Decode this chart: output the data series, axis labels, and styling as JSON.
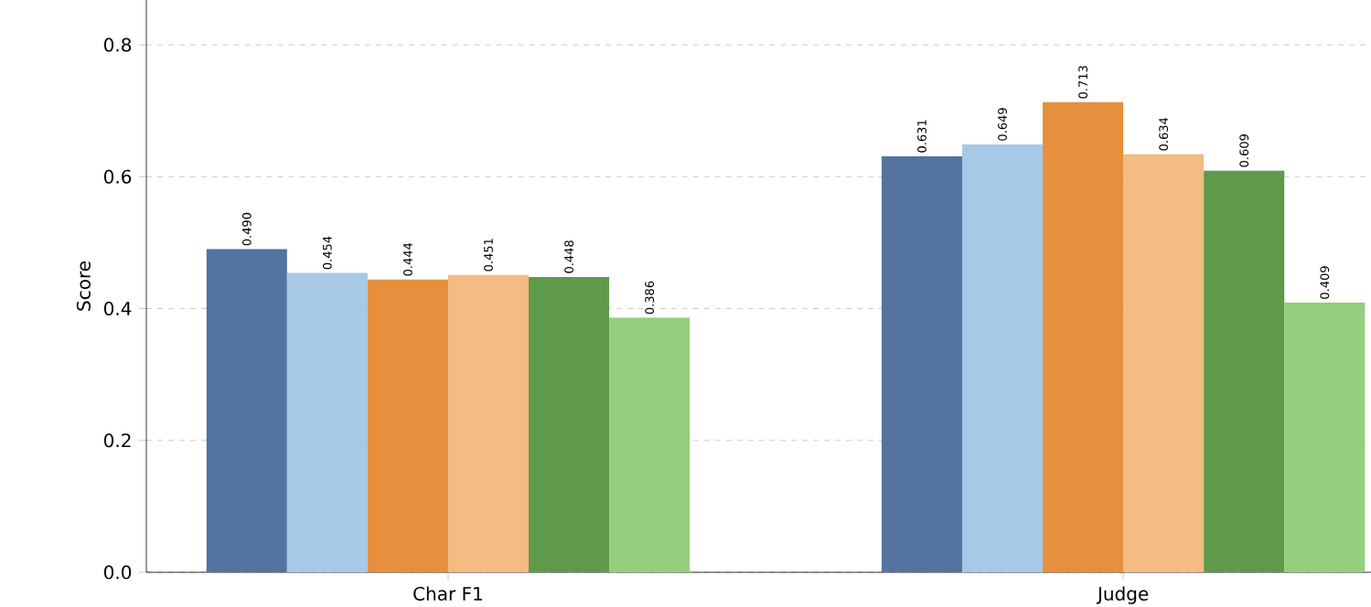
{
  "chart_data": {
    "type": "bar",
    "ylabel": "Score",
    "categories": [
      "Char F1",
      "Judge"
    ],
    "series": [
      {
        "color": "#54739f",
        "values": [
          0.49,
          0.631
        ],
        "value_labels": [
          "0.490",
          "0.631"
        ]
      },
      {
        "color": "#a7c9e6",
        "values": [
          0.454,
          0.649
        ],
        "value_labels": [
          "0.454",
          "0.649"
        ]
      },
      {
        "color": "#e68f3c",
        "values": [
          0.444,
          0.713
        ],
        "value_labels": [
          "0.444",
          "0.713"
        ]
      },
      {
        "color": "#f4bb82",
        "values": [
          0.451,
          0.634
        ],
        "value_labels": [
          "0.451",
          "0.634"
        ]
      },
      {
        "color": "#5f9a4b",
        "values": [
          0.448,
          0.609
        ],
        "value_labels": [
          "0.448",
          "0.609"
        ]
      },
      {
        "color": "#94cf7e",
        "values": [
          0.386,
          0.409
        ],
        "value_labels": [
          "0.386",
          "0.409"
        ]
      }
    ],
    "ylim": [
      0,
      0.868
    ],
    "yticks": [
      {
        "value": 0,
        "label": "0.0"
      },
      0.2,
      0.4,
      0.6,
      0.8
    ],
    "grid": "y"
  }
}
